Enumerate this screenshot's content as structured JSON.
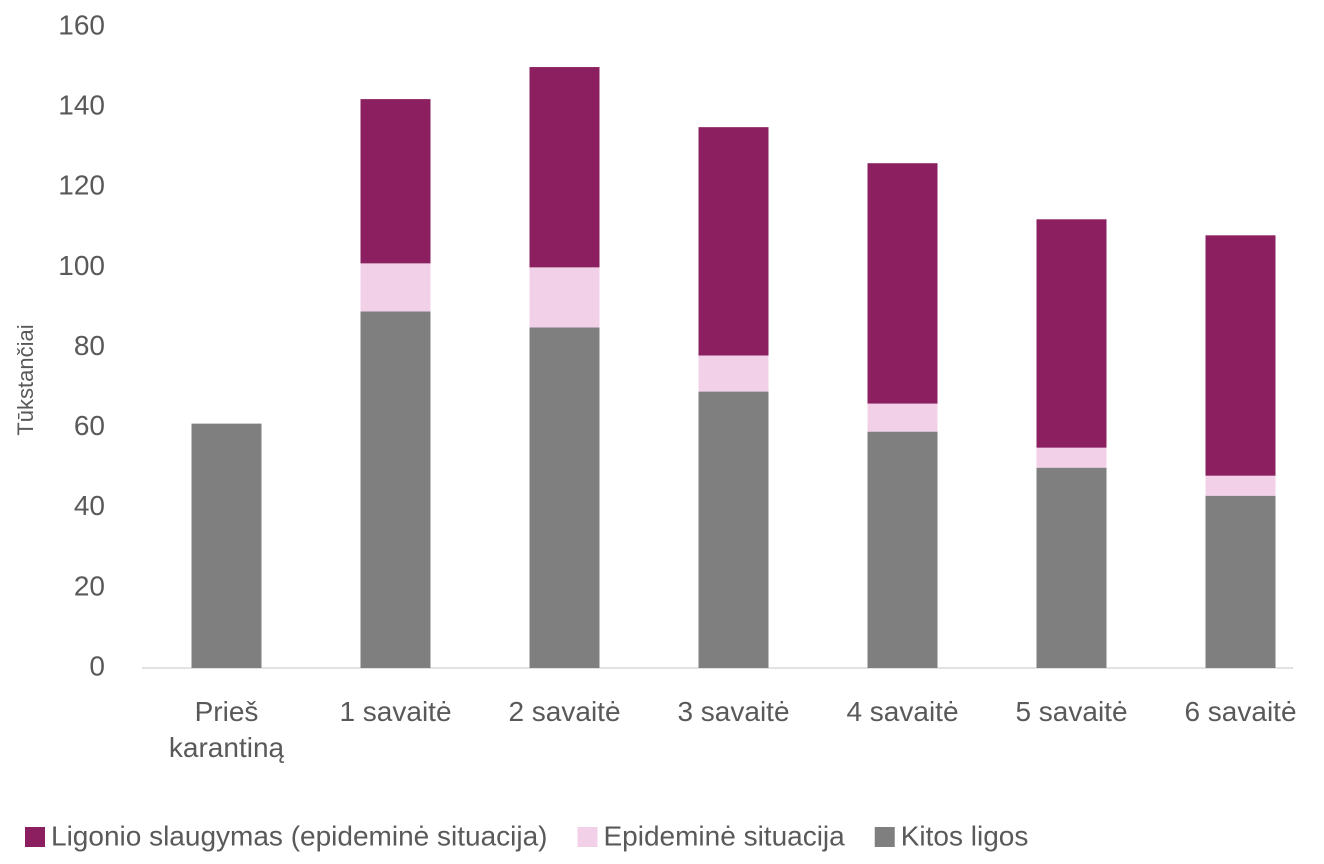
{
  "chart_data": {
    "type": "stacked_bar",
    "y_axis_label": "Tūkstančiai",
    "categories": [
      "Prieš karantiną",
      "1 savaitė",
      "2 savaitė",
      "3 savaitė",
      "4 savaitė",
      "5 savaitė",
      "6 savaitė"
    ],
    "series": [
      {
        "name": "Ligonio slaugymas (epideminė situacija)",
        "color": "#8b1f5f",
        "values": [
          0,
          41,
          50,
          57,
          60,
          57,
          60
        ]
      },
      {
        "name": "Epideminė situacija",
        "color": "#f2d0e8",
        "values": [
          0,
          12,
          15,
          9,
          7,
          5,
          5
        ]
      },
      {
        "name": "Kitos ligos",
        "color": "#7f7f7f",
        "values": [
          61,
          89,
          85,
          69,
          59,
          50,
          43
        ]
      }
    ],
    "ylim": [
      0,
      160
    ],
    "yticks": [
      0,
      20,
      40,
      60,
      80,
      100,
      120,
      140,
      160
    ],
    "grid": false,
    "legend": "bottom"
  }
}
